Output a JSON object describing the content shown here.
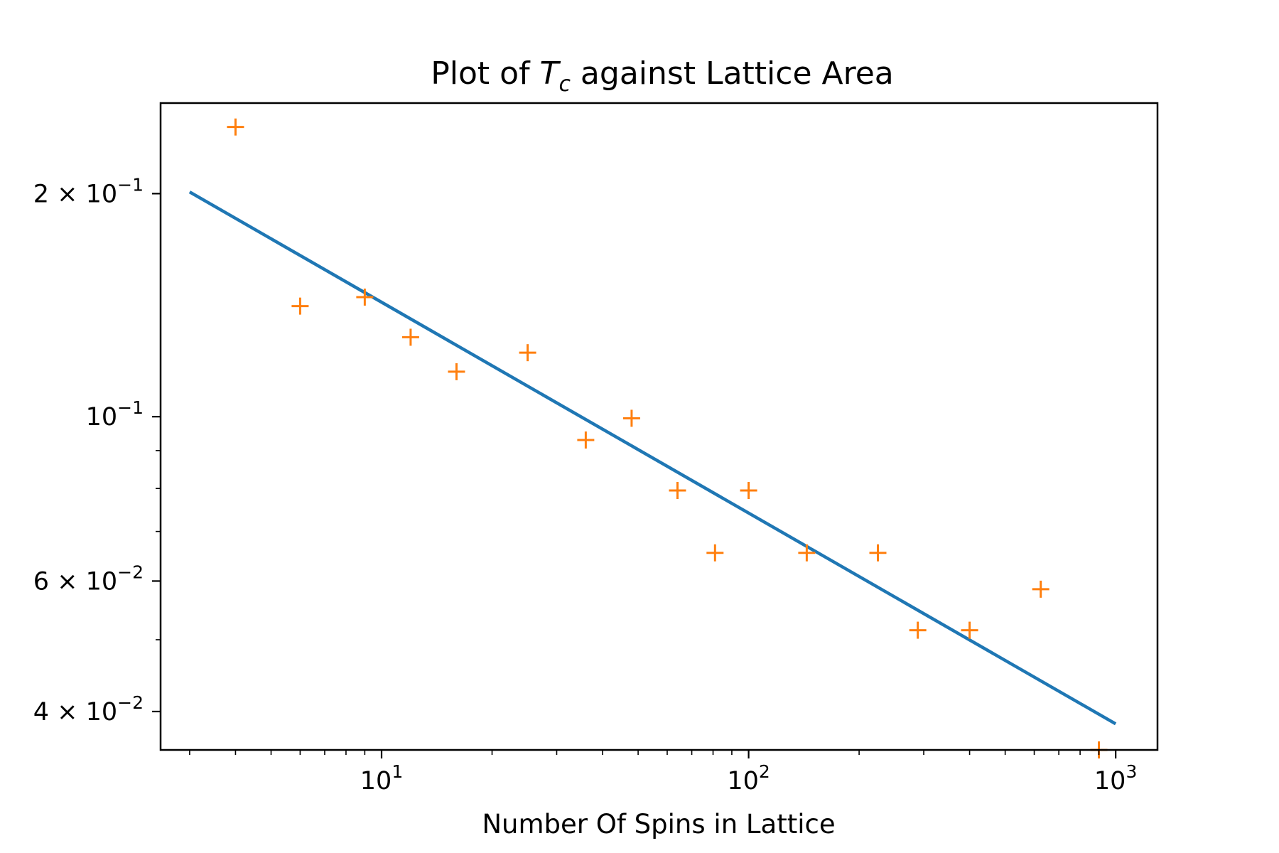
{
  "chart_data": {
    "type": "scatter",
    "title": "Plot of T_c against Lattice Area",
    "title_parts": {
      "before": "Plot of ",
      "symbol": "T",
      "subscript": "c",
      "after": " against Lattice Area"
    },
    "xlabel": "Number Of Spins in Lattice",
    "ylabel": "",
    "xscale": "log",
    "yscale": "log",
    "xlim": [
      2.5,
      1300
    ],
    "ylim": [
      0.0355,
      0.265
    ],
    "x_ticks": [
      {
        "value": 10,
        "base": "10",
        "exp": "1"
      },
      {
        "value": 100,
        "base": "10",
        "exp": "2"
      },
      {
        "value": 1000,
        "base": "10",
        "exp": "3"
      }
    ],
    "y_ticks": [
      {
        "value": 0.2,
        "mant": "2",
        "base": " × 10",
        "exp": "−1"
      },
      {
        "value": 0.1,
        "mant": "",
        "base": "10",
        "exp": "−1"
      },
      {
        "value": 0.06,
        "mant": "6",
        "base": " × 10",
        "exp": "−2"
      },
      {
        "value": 0.04,
        "mant": "4",
        "base": " × 10",
        "exp": "−2"
      }
    ],
    "series": [
      {
        "kind": "points",
        "color": "#ff7f0e",
        "marker": "plus",
        "points": [
          [
            4,
            0.246
          ],
          [
            6,
            0.141
          ],
          [
            9,
            0.145
          ],
          [
            12,
            0.128
          ],
          [
            16,
            0.115
          ],
          [
            25,
            0.122
          ],
          [
            36,
            0.093
          ],
          [
            48,
            0.0995
          ],
          [
            64,
            0.0795
          ],
          [
            81,
            0.0655
          ],
          [
            100,
            0.0795
          ],
          [
            144,
            0.0655
          ],
          [
            225,
            0.0655
          ],
          [
            289,
            0.0515
          ],
          [
            400,
            0.0515
          ],
          [
            625,
            0.0585
          ],
          [
            900,
            0.0355
          ]
        ]
      },
      {
        "kind": "line",
        "color": "#1f77b4",
        "points": [
          [
            3,
            0.201
          ],
          [
            1000,
            0.0385
          ]
        ]
      }
    ]
  }
}
